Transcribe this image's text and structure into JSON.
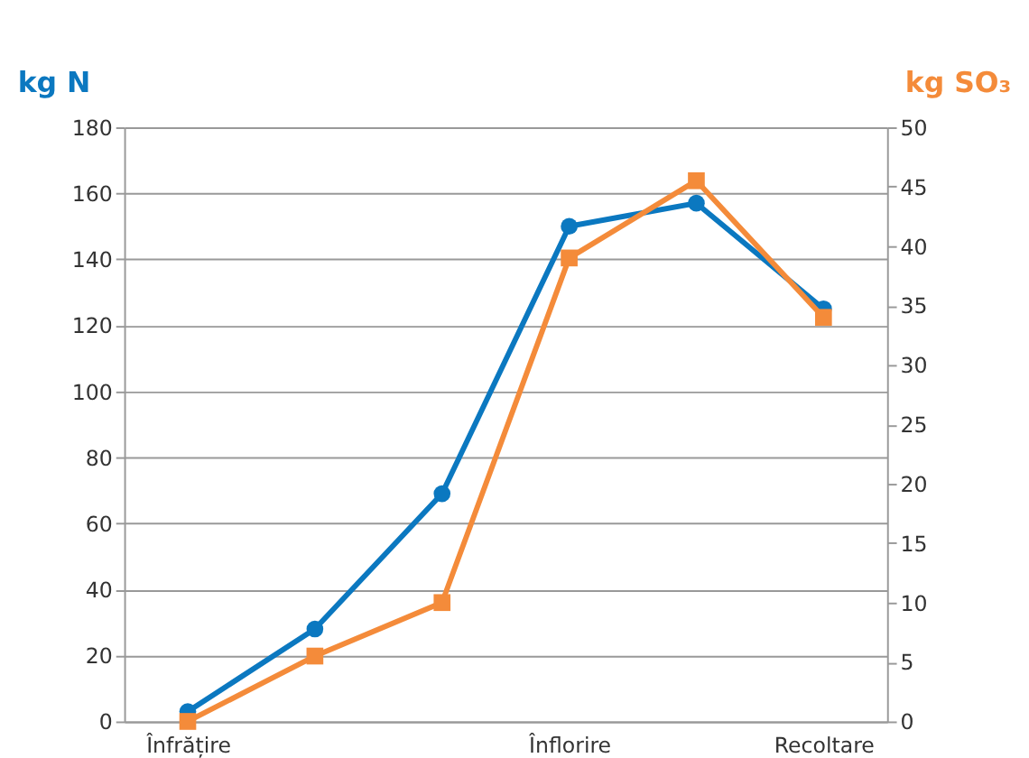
{
  "chart_data": {
    "type": "line",
    "ylabel": "kg N",
    "y2label": "kg SO₃",
    "categories": [
      "Înfrățire",
      null,
      null,
      "Înflorire",
      null,
      "Recoltare"
    ],
    "series": [
      {
        "color": "#0b78c0",
        "marker": "circle",
        "values": [
          3,
          28,
          69,
          150,
          157,
          125
        ]
      },
      {
        "color": "#f48b3a",
        "marker": "square",
        "axis": "y2",
        "values": [
          0,
          5.5,
          10,
          39,
          45.5,
          34
        ]
      }
    ],
    "ylim": [
      0,
      180
    ],
    "yticks": [
      0,
      20,
      40,
      60,
      80,
      100,
      120,
      140,
      160,
      180
    ],
    "y2lim": [
      0,
      50
    ],
    "y2ticks": [
      0,
      5,
      10,
      15,
      20,
      25,
      30,
      35,
      40,
      45,
      50
    ],
    "grid": "y",
    "line_style": "solid"
  }
}
